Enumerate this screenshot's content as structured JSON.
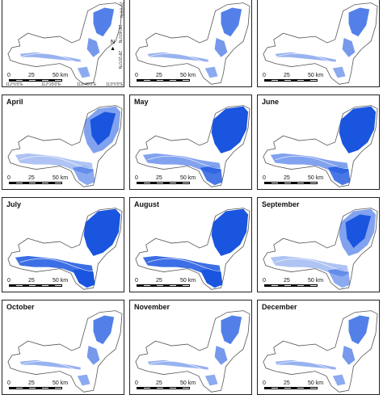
{
  "panels": [
    {
      "label": "",
      "water": "low"
    },
    {
      "label": "",
      "water": "low"
    },
    {
      "label": "",
      "water": "low"
    },
    {
      "label": "April",
      "water": "mid"
    },
    {
      "label": "May",
      "water": "high"
    },
    {
      "label": "June",
      "water": "high"
    },
    {
      "label": "July",
      "water": "full"
    },
    {
      "label": "August",
      "water": "full"
    },
    {
      "label": "September",
      "water": "mid"
    },
    {
      "label": "October",
      "water": "low"
    },
    {
      "label": "November",
      "water": "low"
    },
    {
      "label": "December",
      "water": "low"
    }
  ],
  "scale": {
    "t0": "0",
    "t1": "25",
    "t2": "50 km"
  },
  "coords": {
    "lon1": "112°0'0\"E",
    "lon2": "112°20'0\"E",
    "lon3": "112°40'0\"E",
    "lon4": "113°0'0\"E",
    "lat1": "29°0'0\"N",
    "lat2": "28°40'0\"N",
    "lat3": "28°20'0\"N"
  },
  "north_symbol": "N",
  "colors": {
    "water": "#1a55e0",
    "land": "#ffffff",
    "outline": "#555555"
  }
}
